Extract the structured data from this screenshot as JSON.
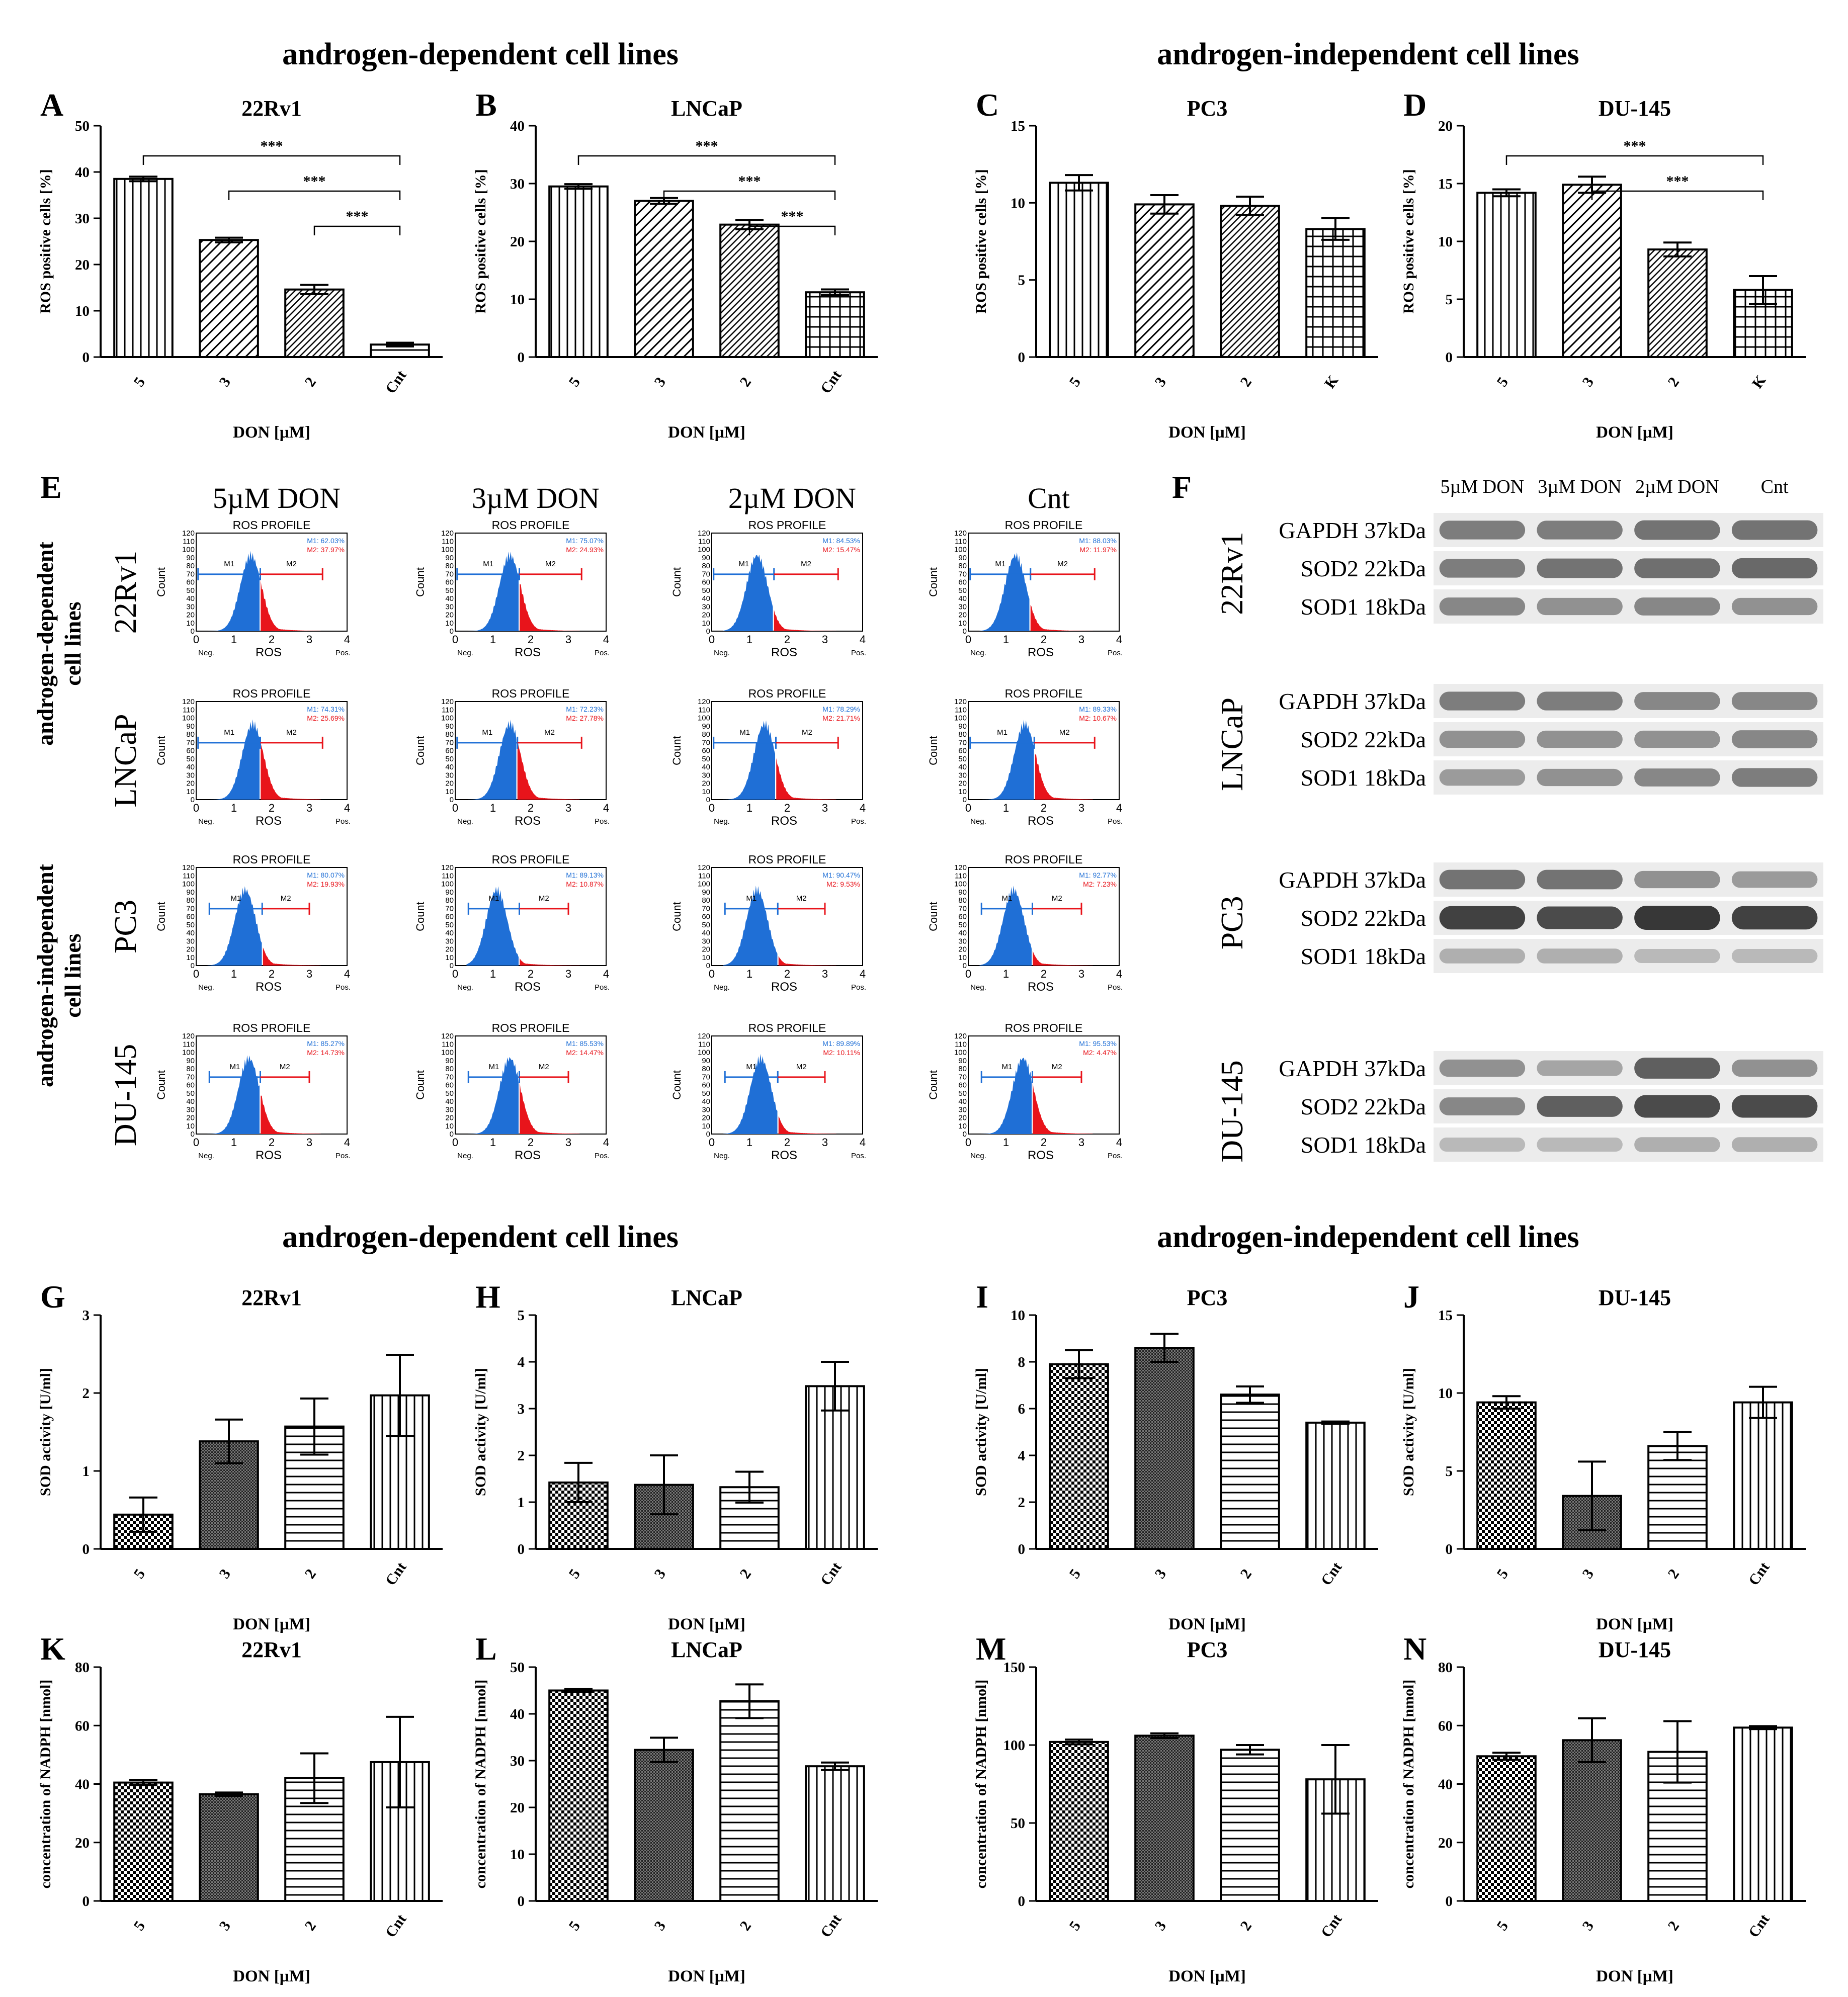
{
  "section_titles": {
    "top_left": "androgen-dependent cell lines",
    "top_right": "androgen-independent cell lines",
    "bottom_left": "androgen-dependent cell lines",
    "bottom_right": "androgen-independent cell lines"
  },
  "colors": {
    "m1": "#1f6fd6",
    "m2": "#e8141b",
    "axis": "#000000",
    "bar_fill": "#ffffff"
  },
  "chart_data": [
    {
      "id": "A",
      "type": "bar",
      "title": "22Rv1",
      "xlabel": "DON [µM]",
      "ylabel": "ROS positive cells [%]",
      "ylim": [
        0,
        50
      ],
      "yticks": [
        0,
        10,
        20,
        30,
        40,
        50
      ],
      "categories": [
        "5",
        "3",
        "2",
        "Cnt"
      ],
      "values": [
        38.5,
        25.3,
        14.6,
        2.7
      ],
      "errors": [
        0.5,
        0.5,
        1.0,
        0.4
      ],
      "patterns": [
        "vertical",
        "diag",
        "diagdense",
        "horizontal"
      ],
      "significance": [
        {
          "from": 0,
          "to": 3,
          "label": "***"
        },
        {
          "from": 1,
          "to": 3,
          "label": "***"
        },
        {
          "from": 2,
          "to": 3,
          "label": "***"
        }
      ]
    },
    {
      "id": "B",
      "type": "bar",
      "title": "LNCaP",
      "xlabel": "DON [µM]",
      "ylabel": "ROS positive cells [%]",
      "ylim": [
        0,
        40
      ],
      "yticks": [
        0,
        10,
        20,
        30,
        40
      ],
      "categories": [
        "5",
        "3",
        "2",
        "Cnt"
      ],
      "values": [
        29.5,
        27.0,
        22.9,
        11.2
      ],
      "errors": [
        0.4,
        0.5,
        0.8,
        0.5
      ],
      "patterns": [
        "vertical",
        "diag",
        "diagdense",
        "grid"
      ],
      "significance": [
        {
          "from": 0,
          "to": 3,
          "label": "***"
        },
        {
          "from": 1,
          "to": 3,
          "label": "***"
        },
        {
          "from": 2,
          "to": 3,
          "label": "***"
        }
      ]
    },
    {
      "id": "C",
      "type": "bar",
      "title": "PC3",
      "xlabel": "DON [µM]",
      "ylabel": "ROS positive cells [%]",
      "ylim": [
        0,
        15
      ],
      "yticks": [
        0,
        5,
        10,
        15
      ],
      "categories": [
        "5",
        "3",
        "2",
        "K"
      ],
      "values": [
        11.3,
        9.9,
        9.8,
        8.3
      ],
      "errors": [
        0.5,
        0.6,
        0.6,
        0.7
      ],
      "patterns": [
        "vertical",
        "diag",
        "diagdense",
        "grid"
      ],
      "significance": []
    },
    {
      "id": "D",
      "type": "bar",
      "title": "DU-145",
      "xlabel": "DON [µM]",
      "ylabel": "ROS positive cells [%]",
      "ylim": [
        0,
        20
      ],
      "yticks": [
        0,
        5,
        10,
        15,
        20
      ],
      "categories": [
        "5",
        "3",
        "2",
        "K"
      ],
      "values": [
        14.2,
        14.9,
        9.3,
        5.8
      ],
      "errors": [
        0.3,
        0.7,
        0.6,
        1.2
      ],
      "patterns": [
        "vertical",
        "diag",
        "diagdense",
        "grid"
      ],
      "significance": [
        {
          "from": 0,
          "to": 3,
          "label": "***"
        },
        {
          "from": 1,
          "to": 3,
          "label": "***"
        }
      ]
    },
    {
      "id": "G",
      "type": "bar",
      "title": "22Rv1",
      "xlabel": "DON [µM]",
      "ylabel": "SOD activity [U/ml]",
      "ylim": [
        0,
        3
      ],
      "yticks": [
        0,
        1,
        2,
        3
      ],
      "categories": [
        "5",
        "3",
        "2",
        "Cnt"
      ],
      "values": [
        0.44,
        1.38,
        1.57,
        1.97
      ],
      "errors": [
        0.22,
        0.28,
        0.36,
        0.52
      ],
      "patterns": [
        "checker",
        "dense",
        "horizontal",
        "vertical"
      ],
      "significance": []
    },
    {
      "id": "H",
      "type": "bar",
      "title": "LNCaP",
      "xlabel": "DON [µM]",
      "ylabel": "SOD activity [U/ml]",
      "ylim": [
        0,
        5
      ],
      "yticks": [
        0,
        1,
        2,
        3,
        4,
        5
      ],
      "categories": [
        "5",
        "3",
        "2",
        "Cnt"
      ],
      "values": [
        1.42,
        1.37,
        1.32,
        3.48
      ],
      "errors": [
        0.42,
        0.63,
        0.33,
        0.52
      ],
      "patterns": [
        "checker",
        "dense",
        "horizontal",
        "vertical"
      ],
      "significance": []
    },
    {
      "id": "I",
      "type": "bar",
      "title": "PC3",
      "xlabel": "DON [µM]",
      "ylabel": "SOD activity [U/ml]",
      "ylim": [
        0,
        10
      ],
      "yticks": [
        0,
        2,
        4,
        6,
        8,
        10
      ],
      "categories": [
        "5",
        "3",
        "2",
        "Cnt"
      ],
      "values": [
        7.9,
        8.6,
        6.6,
        5.4
      ],
      "errors": [
        0.6,
        0.6,
        0.35,
        0.05
      ],
      "patterns": [
        "checker",
        "dense",
        "horizontal",
        "vertical"
      ],
      "significance": []
    },
    {
      "id": "J",
      "type": "bar",
      "title": "DU-145",
      "xlabel": "DON [µM]",
      "ylabel": "SOD activity [U/ml]",
      "ylim": [
        0,
        15
      ],
      "yticks": [
        0,
        5,
        10,
        15
      ],
      "categories": [
        "5",
        "3",
        "2",
        "Cnt"
      ],
      "values": [
        9.4,
        3.4,
        6.6,
        9.4
      ],
      "errors": [
        0.4,
        2.2,
        0.9,
        1.0
      ],
      "patterns": [
        "checker",
        "dense",
        "horizontal",
        "vertical"
      ],
      "significance": []
    },
    {
      "id": "K",
      "type": "bar",
      "title": "22Rv1",
      "xlabel": "DON [µM]",
      "ylabel": "concentration of NADPH [nmol]",
      "ylim": [
        0,
        80
      ],
      "yticks": [
        0,
        20,
        40,
        60,
        80
      ],
      "categories": [
        "5",
        "3",
        "2",
        "Cnt"
      ],
      "values": [
        40.5,
        36.5,
        42.0,
        47.5
      ],
      "errors": [
        0.8,
        0.6,
        8.5,
        15.5
      ],
      "patterns": [
        "checker",
        "dense",
        "horizontal",
        "vertical"
      ],
      "significance": []
    },
    {
      "id": "L",
      "type": "bar",
      "title": "LNCaP",
      "xlabel": "DON [µM]",
      "ylabel": "concentration of NADPH [nmol]",
      "ylim": [
        0,
        50
      ],
      "yticks": [
        0,
        10,
        20,
        30,
        40,
        50
      ],
      "categories": [
        "5",
        "3",
        "2",
        "Cnt"
      ],
      "values": [
        45.0,
        32.3,
        42.7,
        28.8
      ],
      "errors": [
        0.3,
        2.6,
        3.6,
        0.8
      ],
      "patterns": [
        "checker",
        "dense",
        "horizontal",
        "vertical"
      ],
      "significance": []
    },
    {
      "id": "M",
      "type": "bar",
      "title": "PC3",
      "xlabel": "DON [µM]",
      "ylabel": "concentration of NADPH [nmol]",
      "ylim": [
        0,
        150
      ],
      "yticks": [
        0,
        50,
        100,
        150
      ],
      "categories": [
        "5",
        "3",
        "2",
        "Cnt"
      ],
      "values": [
        102,
        106,
        97,
        78
      ],
      "errors": [
        1.5,
        1.5,
        3.0,
        22
      ],
      "patterns": [
        "checker",
        "dense",
        "horizontal",
        "vertical"
      ],
      "significance": []
    },
    {
      "id": "N",
      "type": "bar",
      "title": "DU-145",
      "xlabel": "DON [µM]",
      "ylabel": "concentration of NADPH [nmol]",
      "ylim": [
        0,
        80
      ],
      "yticks": [
        0,
        20,
        40,
        60,
        80
      ],
      "categories": [
        "5",
        "3",
        "2",
        "Cnt"
      ],
      "values": [
        49.5,
        55.0,
        51.0,
        59.3
      ],
      "errors": [
        1.2,
        7.5,
        10.5,
        0.5
      ],
      "patterns": [
        "checker",
        "dense",
        "horizontal",
        "vertical"
      ],
      "significance": []
    }
  ],
  "flow": {
    "letter": "E",
    "col_titles": [
      "5µM DON",
      "3µM DON",
      "2µM DON",
      "Cnt"
    ],
    "row_labels": [
      "22Rv1",
      "LNCaP",
      "PC3",
      "DU-145"
    ],
    "group_labels": [
      {
        "line1": "androgen-dependent",
        "line2": "cell lines"
      },
      {
        "line1": "androgen-independent",
        "line2": "cell lines"
      }
    ],
    "plot_title": "ROS PROFILE",
    "ylabel": "Count",
    "xlabel": "ROS",
    "neg": "Neg.",
    "pos": "Pos.",
    "gate1": "M1",
    "gate2": "M2",
    "yticks": [
      "0",
      "10",
      "20",
      "30",
      "40",
      "50",
      "60",
      "70",
      "80",
      "90",
      "100",
      "110",
      "120"
    ],
    "xticks": [
      "0",
      "1",
      "2",
      "3",
      "4"
    ],
    "rows": [
      [
        {
          "m1": "M1: 62.03%",
          "m2": "M2: 37.97%",
          "peak": 1.45,
          "gate": 1.7
        },
        {
          "m1": "M1: 75.07%",
          "m2": "M2: 24.93%",
          "peak": 1.45,
          "gate": 1.7
        },
        {
          "m1": "M1: 84.53%",
          "m2": "M2: 15.47%",
          "peak": 1.2,
          "gate": 1.65
        },
        {
          "m1": "M1: 88.03%",
          "m2": "M2: 11.97%",
          "peak": 1.25,
          "gate": 1.65
        }
      ],
      [
        {
          "m1": "M1: 74.31%",
          "m2": "M2: 25.69%",
          "peak": 1.5,
          "gate": 1.7
        },
        {
          "m1": "M1: 72.23%",
          "m2": "M2: 27.78%",
          "peak": 1.45,
          "gate": 1.65
        },
        {
          "m1": "M1: 78.29%",
          "m2": "M2: 21.71%",
          "peak": 1.4,
          "gate": 1.7
        },
        {
          "m1": "M1: 89.33%",
          "m2": "M2: 10.67%",
          "peak": 1.5,
          "gate": 1.75
        }
      ],
      [
        {
          "m1": "M1: 80.07%",
          "m2": "M2: 19.93%",
          "peak": 1.3,
          "gate": 1.75
        },
        {
          "m1": "M1: 89.13%",
          "m2": "M2: 10.87%",
          "peak": 1.1,
          "gate": 1.7
        },
        {
          "m1": "M1: 90.47%",
          "m2": "M2: 9.53%",
          "peak": 1.2,
          "gate": 1.75
        },
        {
          "m1": "M1: 92.77%",
          "m2": "M2: 7.23%",
          "peak": 1.2,
          "gate": 1.7
        }
      ],
      [
        {
          "m1": "M1: 85.27%",
          "m2": "M2: 14.73%",
          "peak": 1.4,
          "gate": 1.7
        },
        {
          "m1": "M1: 85.53%",
          "m2": "M2: 14.47%",
          "peak": 1.45,
          "gate": 1.7
        },
        {
          "m1": "M1: 89.89%",
          "m2": "M2: 10.11%",
          "peak": 1.3,
          "gate": 1.75
        },
        {
          "m1": "M1: 95.53%",
          "m2": "M2: 4.47%",
          "peak": 1.45,
          "gate": 1.7
        }
      ]
    ]
  },
  "blot": {
    "letter": "F",
    "lane_labels": [
      "5µM DON",
      "3µM DON",
      "2µM DON",
      "Cnt"
    ],
    "groups": [
      {
        "cell": "22Rv1",
        "bands": [
          {
            "label": "GAPDH 37kDa",
            "intensity": [
              0.55,
              0.55,
              0.6,
              0.6
            ]
          },
          {
            "label": "SOD2 22kDa",
            "intensity": [
              0.55,
              0.6,
              0.62,
              0.65
            ]
          },
          {
            "label": "SOD1 18kDa",
            "intensity": [
              0.5,
              0.45,
              0.5,
              0.45
            ]
          }
        ]
      },
      {
        "cell": "LNCaP",
        "bands": [
          {
            "label": "GAPDH 37kDa",
            "intensity": [
              0.55,
              0.55,
              0.5,
              0.5
            ]
          },
          {
            "label": "SOD2 22kDa",
            "intensity": [
              0.45,
              0.45,
              0.45,
              0.5
            ]
          },
          {
            "label": "SOD1 18kDa",
            "intensity": [
              0.4,
              0.45,
              0.5,
              0.55
            ]
          }
        ]
      },
      {
        "cell": "PC3",
        "bands": [
          {
            "label": "GAPDH 37kDa",
            "intensity": [
              0.6,
              0.6,
              0.45,
              0.4
            ]
          },
          {
            "label": "SOD2 22kDa",
            "intensity": [
              0.85,
              0.8,
              0.9,
              0.85
            ]
          },
          {
            "label": "SOD1 18kDa",
            "intensity": [
              0.3,
              0.3,
              0.25,
              0.25
            ]
          }
        ]
      },
      {
        "cell": "DU-145",
        "bands": [
          {
            "label": "GAPDH 37kDa",
            "intensity": [
              0.45,
              0.35,
              0.7,
              0.45
            ]
          },
          {
            "label": "SOD2 22kDa",
            "intensity": [
              0.5,
              0.7,
              0.8,
              0.8
            ]
          },
          {
            "label": "SOD1 18kDa",
            "intensity": [
              0.25,
              0.25,
              0.3,
              0.3
            ]
          }
        ]
      }
    ]
  }
}
